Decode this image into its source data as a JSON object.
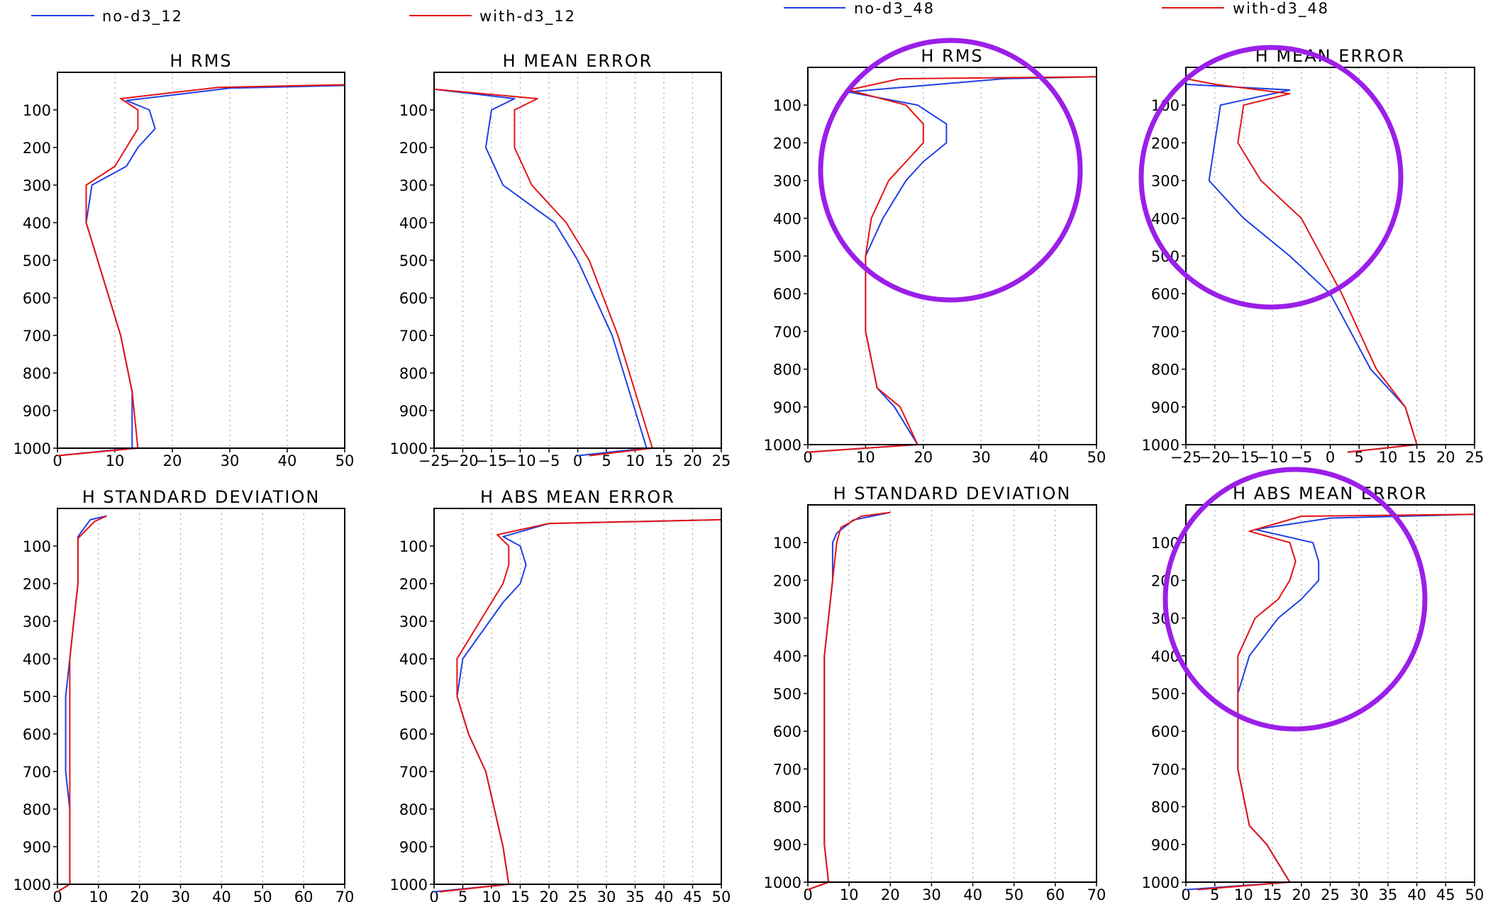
{
  "colors": {
    "no_d3": "#1f3fe6",
    "with_d3": "#e41414",
    "highlight": "#9b1fe8"
  },
  "legends": [
    {
      "label": "no-d3_12",
      "series": "no_d3"
    },
    {
      "label": "with-d3_12",
      "series": "with_d3"
    },
    {
      "label": "no-d3_48",
      "series": "no_d3"
    },
    {
      "label": "with-d3_48",
      "series": "with_d3"
    }
  ],
  "chart_data": [
    {
      "type": "line",
      "title": "H RMS",
      "xlim": [
        0,
        50
      ],
      "xticks": [
        0,
        10,
        20,
        30,
        40,
        50
      ],
      "ylim": [
        1000,
        0
      ],
      "yticks": [
        100,
        200,
        300,
        400,
        500,
        600,
        700,
        800,
        900,
        1000
      ],
      "series": [
        {
          "name": "no-d3_12",
          "x": [
            50,
            30,
            12,
            16,
            17,
            14,
            12,
            6,
            5,
            7,
            9,
            11,
            13,
            13,
            0
          ],
          "y": [
            35,
            42,
            75,
            100,
            150,
            200,
            250,
            300,
            400,
            500,
            600,
            700,
            850,
            1000,
            1020
          ]
        },
        {
          "name": "with-d3_12",
          "x": [
            50,
            28,
            11,
            14,
            14,
            12,
            10,
            5,
            5,
            7,
            9,
            11,
            13,
            14,
            0
          ],
          "y": [
            33,
            40,
            70,
            100,
            150,
            200,
            250,
            300,
            400,
            500,
            600,
            700,
            850,
            1000,
            1020
          ]
        }
      ]
    },
    {
      "type": "line",
      "title": "H MEAN ERROR",
      "xlim": [
        -25,
        25
      ],
      "xticks": [
        -25,
        -20,
        -15,
        -10,
        -5,
        0,
        5,
        10,
        15,
        20,
        25
      ],
      "ylim": [
        1000,
        0
      ],
      "yticks": [
        100,
        200,
        300,
        400,
        500,
        600,
        700,
        800,
        900,
        1000
      ],
      "series": [
        {
          "name": "no-d3_12",
          "x": [
            -25,
            -11,
            -15,
            -16,
            -13,
            -4,
            0,
            6,
            10,
            12,
            0
          ],
          "y": [
            45,
            70,
            100,
            200,
            300,
            400,
            500,
            700,
            900,
            1000,
            1020
          ]
        },
        {
          "name": "with-d3_12",
          "x": [
            -25,
            -7,
            -11,
            -11,
            -8,
            -2,
            2,
            7,
            11,
            13,
            2
          ],
          "y": [
            45,
            70,
            100,
            200,
            300,
            400,
            500,
            700,
            900,
            1000,
            1020
          ]
        }
      ]
    },
    {
      "type": "line",
      "title": "H RMS",
      "xlim": [
        0,
        50
      ],
      "xticks": [
        0,
        10,
        20,
        30,
        40,
        50
      ],
      "ylim": [
        1000,
        0
      ],
      "yticks": [
        100,
        200,
        300,
        400,
        500,
        600,
        700,
        800,
        900,
        1000
      ],
      "series": [
        {
          "name": "no-d3_48",
          "x": [
            50,
            34,
            7,
            19,
            24,
            24,
            20,
            17,
            13,
            10,
            10,
            10,
            12,
            15,
            19,
            0
          ],
          "y": [
            25,
            30,
            65,
            100,
            150,
            200,
            250,
            300,
            400,
            500,
            600,
            700,
            850,
            900,
            1000,
            1020
          ]
        },
        {
          "name": "with-d3_48",
          "x": [
            50,
            16,
            7,
            17,
            20,
            20,
            17,
            14,
            11,
            10,
            10,
            10,
            12,
            16,
            19,
            0
          ],
          "y": [
            25,
            30,
            60,
            100,
            150,
            200,
            250,
            300,
            400,
            500,
            600,
            700,
            850,
            900,
            1000,
            1020
          ]
        }
      ]
    },
    {
      "type": "line",
      "title": "H MEAN ERROR",
      "xlim": [
        -25,
        25
      ],
      "xticks": [
        -25,
        -20,
        -15,
        -10,
        -5,
        0,
        5,
        10,
        15,
        20,
        25
      ],
      "ylim": [
        1000,
        0
      ],
      "yticks": [
        100,
        200,
        300,
        400,
        500,
        600,
        700,
        800,
        900,
        1000
      ],
      "series": [
        {
          "name": "no-d3_48",
          "x": [
            -25,
            -7,
            -19,
            -20,
            -21,
            -15,
            -7,
            0,
            7,
            13,
            15,
            3
          ],
          "y": [
            45,
            60,
            100,
            200,
            300,
            400,
            500,
            600,
            800,
            900,
            1000,
            1020
          ]
        },
        {
          "name": "with-d3_48",
          "x": [
            -25,
            -20,
            -7,
            -15,
            -16,
            -12,
            -5,
            2,
            8,
            13,
            15,
            3
          ],
          "y": [
            30,
            45,
            70,
            100,
            200,
            300,
            400,
            600,
            800,
            900,
            1000,
            1020
          ]
        }
      ]
    },
    {
      "type": "line",
      "title": "H STANDARD DEVIATION",
      "xlim": [
        0,
        70
      ],
      "xticks": [
        0,
        10,
        20,
        30,
        40,
        50,
        60,
        70
      ],
      "ylim": [
        1000,
        0
      ],
      "yticks": [
        100,
        200,
        300,
        400,
        500,
        600,
        700,
        800,
        900,
        1000
      ],
      "series": [
        {
          "name": "no-d3_12",
          "x": [
            12,
            8,
            5,
            5,
            4,
            3,
            2,
            2,
            2,
            3,
            3,
            0
          ],
          "y": [
            20,
            30,
            75,
            200,
            300,
            400,
            500,
            600,
            700,
            800,
            1000,
            1020
          ]
        },
        {
          "name": "with-d3_12",
          "x": [
            12,
            9,
            5,
            5,
            4,
            3,
            3,
            3,
            3,
            3,
            3,
            0
          ],
          "y": [
            20,
            35,
            80,
            200,
            300,
            400,
            500,
            600,
            700,
            800,
            1000,
            1020
          ]
        }
      ]
    },
    {
      "type": "line",
      "title": "H ABS MEAN ERROR",
      "xlim": [
        0,
        50
      ],
      "xticks": [
        0,
        5,
        10,
        15,
        20,
        25,
        30,
        35,
        40,
        45,
        50
      ],
      "ylim": [
        1000,
        0
      ],
      "yticks": [
        100,
        200,
        300,
        400,
        500,
        600,
        700,
        800,
        900,
        1000
      ],
      "series": [
        {
          "name": "no-d3_12",
          "x": [
            50,
            20,
            12,
            15,
            16,
            15,
            12,
            5,
            4,
            6,
            9,
            12,
            13,
            0
          ],
          "y": [
            30,
            40,
            75,
            100,
            150,
            200,
            250,
            400,
            500,
            600,
            700,
            900,
            1000,
            1020
          ]
        },
        {
          "name": "with-d3_12",
          "x": [
            50,
            20,
            11,
            13,
            13,
            12,
            10,
            4,
            4,
            6,
            9,
            12,
            13,
            1
          ],
          "y": [
            30,
            40,
            70,
            100,
            150,
            200,
            250,
            400,
            500,
            600,
            700,
            900,
            1000,
            1020
          ]
        }
      ]
    },
    {
      "type": "line",
      "title": "H STANDARD DEVIATION",
      "xlim": [
        0,
        70
      ],
      "xticks": [
        0,
        10,
        20,
        30,
        40,
        50,
        60,
        70
      ],
      "ylim": [
        1000,
        0
      ],
      "yticks": [
        100,
        200,
        300,
        400,
        500,
        600,
        700,
        800,
        900,
        1000
      ],
      "series": [
        {
          "name": "no-d3_48",
          "x": [
            20,
            11,
            7,
            6,
            6,
            5,
            4,
            4,
            4,
            4,
            4,
            5,
            0
          ],
          "y": [
            20,
            40,
            75,
            100,
            200,
            300,
            400,
            500,
            600,
            700,
            900,
            1000,
            1020
          ]
        },
        {
          "name": "with-d3_48",
          "x": [
            20,
            13,
            8,
            7,
            6,
            5,
            4,
            4,
            4,
            4,
            4,
            5,
            0
          ],
          "y": [
            20,
            30,
            60,
            100,
            200,
            300,
            400,
            500,
            600,
            700,
            900,
            1000,
            1020
          ]
        }
      ]
    },
    {
      "type": "line",
      "title": "H ABS MEAN ERROR",
      "xlim": [
        0,
        50
      ],
      "xticks": [
        0,
        5,
        10,
        15,
        20,
        25,
        30,
        35,
        40,
        45,
        50
      ],
      "ylim": [
        1000,
        0
      ],
      "yticks": [
        100,
        200,
        300,
        400,
        500,
        600,
        700,
        800,
        900,
        1000
      ],
      "series": [
        {
          "name": "no-d3_48",
          "x": [
            50,
            25,
            12,
            22,
            23,
            23,
            20,
            16,
            11,
            9,
            9,
            9,
            11,
            14,
            18,
            0
          ],
          "y": [
            25,
            35,
            65,
            100,
            150,
            200,
            250,
            300,
            400,
            500,
            600,
            700,
            850,
            900,
            1000,
            1020
          ]
        },
        {
          "name": "with-d3_48",
          "x": [
            50,
            20,
            11,
            18,
            19,
            18,
            16,
            12,
            9,
            9,
            9,
            9,
            11,
            14,
            18,
            2
          ],
          "y": [
            25,
            30,
            70,
            100,
            150,
            200,
            250,
            300,
            400,
            500,
            600,
            700,
            850,
            900,
            1000,
            1020
          ]
        }
      ]
    }
  ]
}
